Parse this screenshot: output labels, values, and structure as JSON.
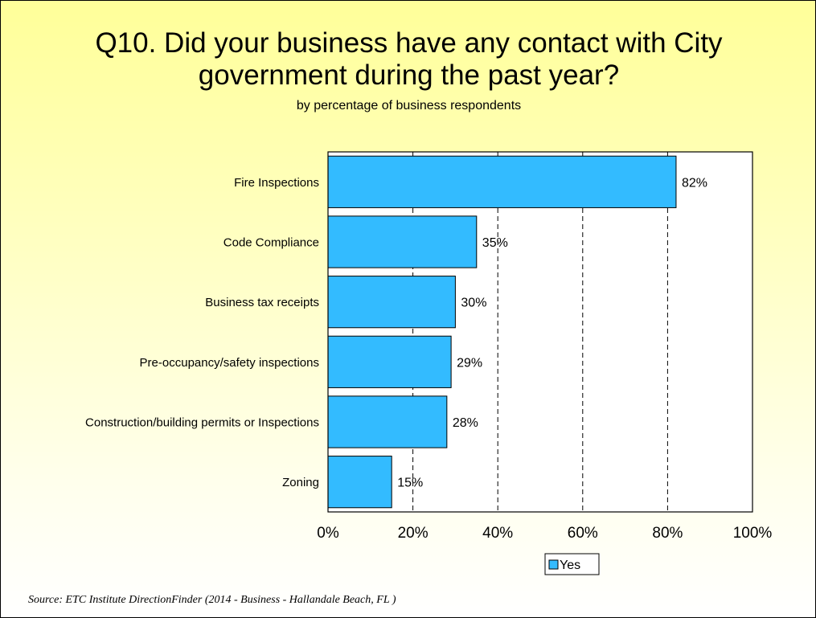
{
  "title_line1": "Q10. Did your business have any contact with City",
  "title_line2": "government during the past year?",
  "subtitle": "by percentage of business respondents",
  "source": "Source:  ETC Institute DirectionFinder (2014 - Business - Hallandale Beach, FL )",
  "colors": {
    "bar": "#33bbff",
    "background_top": "#ffff99",
    "background_bottom": "#ffffff"
  },
  "chart_data": {
    "type": "bar",
    "orientation": "horizontal",
    "categories": [
      "Fire Inspections",
      "Code Compliance",
      "Business tax receipts",
      "Pre-occupancy/safety inspections",
      "Construction/building permits or Inspections",
      "Zoning"
    ],
    "series": [
      {
        "name": "Yes",
        "values": [
          82,
          35,
          30,
          29,
          28,
          15
        ]
      }
    ],
    "data_labels": [
      "82%",
      "35%",
      "30%",
      "29%",
      "28%",
      "15%"
    ],
    "xlim": [
      0,
      100
    ],
    "x_ticks": [
      0,
      20,
      40,
      60,
      80,
      100
    ],
    "x_tick_labels": [
      "0%",
      "20%",
      "40%",
      "60%",
      "80%",
      "100%"
    ],
    "grid": "vertical dashed",
    "legend": {
      "position": "bottom",
      "entries": [
        "Yes"
      ]
    }
  }
}
